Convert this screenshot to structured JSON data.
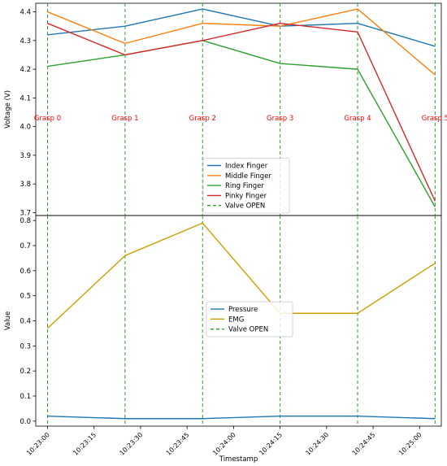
{
  "chart_data": [
    {
      "type": "line",
      "x": [
        "10:23:00",
        "10:23:25",
        "10:23:50",
        "10:24:15",
        "10:24:40",
        "10:25:05"
      ],
      "ylabel": "Voltage (V)",
      "ylim": [
        3.69,
        4.43
      ],
      "yticks": [
        3.7,
        3.8,
        3.9,
        4.0,
        4.1,
        4.2,
        4.3,
        4.4
      ],
      "series": [
        {
          "name": "Index Finger",
          "color": "#1f77b4",
          "values": [
            4.32,
            4.35,
            4.41,
            4.35,
            4.36,
            4.28
          ]
        },
        {
          "name": "Middle Finger",
          "color": "#ff7f0e",
          "values": [
            4.4,
            4.29,
            4.36,
            4.35,
            4.41,
            4.18
          ]
        },
        {
          "name": "Ring Finger",
          "color": "#2ca02c",
          "values": [
            4.21,
            4.25,
            4.3,
            4.22,
            4.2,
            3.72
          ]
        },
        {
          "name": "Pinky Finger",
          "color": "#d62728",
          "values": [
            4.36,
            4.25,
            4.3,
            4.36,
            4.33,
            3.74
          ]
        }
      ],
      "valve_open": {
        "name": "Valve OPEN",
        "color": "#2ca02c"
      },
      "annotations": [
        "Grasp 0",
        "Grasp 1",
        "Grasp 2",
        "Grasp 3",
        "Grasp 4",
        "Grasp 5"
      ],
      "annotation_y": 4.03,
      "annotation_color": "#ff0000",
      "legend": "center-bottom",
      "grid": false
    },
    {
      "type": "line",
      "x": [
        "10:23:00",
        "10:23:25",
        "10:23:50",
        "10:24:15",
        "10:24:40",
        "10:25:05"
      ],
      "ylabel": "Value",
      "xlabel": "Timestamp",
      "ylim": [
        -0.02,
        0.82
      ],
      "yticks": [
        0.0,
        0.1,
        0.2,
        0.3,
        0.4,
        0.5,
        0.6,
        0.7,
        0.8
      ],
      "xticks": [
        "10:23:00",
        "10:23:15",
        "10:23:30",
        "10:23:45",
        "10:24:00",
        "10:24:15",
        "10:24:30",
        "10:24:45",
        "10:25:00"
      ],
      "series": [
        {
          "name": "Pressure",
          "color": "#1f77b4",
          "values": [
            0.02,
            0.01,
            0.01,
            0.02,
            0.02,
            0.01
          ]
        },
        {
          "name": "EMG",
          "color": "#c8a000",
          "values": [
            0.37,
            0.66,
            0.79,
            0.43,
            0.43,
            0.63
          ]
        }
      ],
      "valve_open": {
        "name": "Valve OPEN",
        "color": "#2ca02c"
      },
      "legend": "center",
      "grid": false
    }
  ]
}
